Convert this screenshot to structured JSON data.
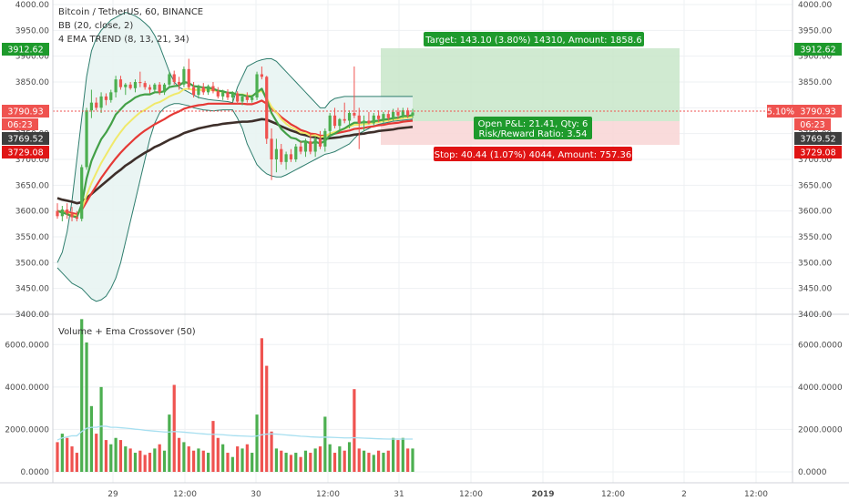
{
  "legend": {
    "symbol": "Bitcoin / TetherUS, 60, BINANCE",
    "bb": "BB (20, close, 2)",
    "ema": "4 EMA TREND (8, 13, 21, 34)",
    "volume": "Volume + Ema Crossover (50)"
  },
  "colors": {
    "up": "#4caf50",
    "down": "#ef5350",
    "bb_line": "#2e7d6d",
    "bb_fill": "#e8f4f2",
    "ema8": "#43a047",
    "ema13": "#f0e96a",
    "ema21": "#e53935",
    "ema34": "#3e2f2a",
    "target_zone": "#c8e6c9",
    "stop_zone": "#f8d7d7",
    "ema_vol": "#a7dff0"
  },
  "price_axis": {
    "ticks": [
      "4000.00",
      "3950.00",
      "3900.00",
      "3850.00",
      "3800.00",
      "3750.00",
      "3700.00",
      "3650.00",
      "3600.00",
      "3550.00",
      "3500.00",
      "3450.00",
      "3400.00"
    ]
  },
  "price_tags": {
    "target": "3912.62",
    "last": "3790.93",
    "countdown": "06:23",
    "entry": "3769.52",
    "stop": "3729.08",
    "pct": "5.10%"
  },
  "volume_axis": {
    "ticks": [
      "6000.0000",
      "4000.0000",
      "2000.0000",
      "0.0000"
    ]
  },
  "time_axis": {
    "ticks": [
      "29",
      "12:00",
      "30",
      "12:00",
      "31",
      "12:00",
      "2019",
      "12:00",
      "2",
      "12:00"
    ]
  },
  "position": {
    "target_label": "Target: 143.10 (3.80%) 14310, Amount: 1858.6",
    "pnl_line1": "Open P&L: 21.41, Qty: 6",
    "pnl_line2": "Risk/Reward Ratio: 3.54",
    "stop_label": "Stop: 40.44 (1.07%) 4044, Amount: 757.36"
  },
  "chart_data": {
    "type": "candlestick",
    "title": "Bitcoin / TetherUS, 60, BINANCE",
    "ylim": [
      3400,
      4000
    ],
    "volume_ylim": [
      0,
      7000
    ],
    "candles": [
      {
        "o": 3600,
        "h": 3615,
        "l": 3585,
        "c": 3590
      },
      {
        "o": 3590,
        "h": 3610,
        "l": 3580,
        "c": 3603
      },
      {
        "o": 3603,
        "h": 3615,
        "l": 3585,
        "c": 3595
      },
      {
        "o": 3595,
        "h": 3608,
        "l": 3580,
        "c": 3588
      },
      {
        "o": 3588,
        "h": 3600,
        "l": 3580,
        "c": 3585
      },
      {
        "o": 3585,
        "h": 3690,
        "l": 3580,
        "c": 3685
      },
      {
        "o": 3685,
        "h": 3800,
        "l": 3680,
        "c": 3795
      },
      {
        "o": 3795,
        "h": 3835,
        "l": 3780,
        "c": 3810
      },
      {
        "o": 3810,
        "h": 3820,
        "l": 3795,
        "c": 3800
      },
      {
        "o": 3800,
        "h": 3830,
        "l": 3790,
        "c": 3822
      },
      {
        "o": 3822,
        "h": 3828,
        "l": 3805,
        "c": 3815
      },
      {
        "o": 3815,
        "h": 3835,
        "l": 3810,
        "c": 3830
      },
      {
        "o": 3830,
        "h": 3862,
        "l": 3820,
        "c": 3855
      },
      {
        "o": 3855,
        "h": 3862,
        "l": 3835,
        "c": 3840
      },
      {
        "o": 3840,
        "h": 3848,
        "l": 3825,
        "c": 3845
      },
      {
        "o": 3845,
        "h": 3850,
        "l": 3835,
        "c": 3838
      },
      {
        "o": 3838,
        "h": 3855,
        "l": 3830,
        "c": 3850
      },
      {
        "o": 3850,
        "h": 3870,
        "l": 3840,
        "c": 3848
      },
      {
        "o": 3848,
        "h": 3852,
        "l": 3835,
        "c": 3840
      },
      {
        "o": 3840,
        "h": 3845,
        "l": 3828,
        "c": 3835
      },
      {
        "o": 3835,
        "h": 3848,
        "l": 3830,
        "c": 3845
      },
      {
        "o": 3845,
        "h": 3850,
        "l": 3825,
        "c": 3830
      },
      {
        "o": 3830,
        "h": 3848,
        "l": 3825,
        "c": 3845
      },
      {
        "o": 3845,
        "h": 3870,
        "l": 3840,
        "c": 3865
      },
      {
        "o": 3865,
        "h": 3872,
        "l": 3845,
        "c": 3850
      },
      {
        "o": 3850,
        "h": 3860,
        "l": 3835,
        "c": 3845
      },
      {
        "o": 3845,
        "h": 3880,
        "l": 3840,
        "c": 3875
      },
      {
        "o": 3875,
        "h": 3895,
        "l": 3835,
        "c": 3840
      },
      {
        "o": 3840,
        "h": 3850,
        "l": 3820,
        "c": 3825
      },
      {
        "o": 3825,
        "h": 3845,
        "l": 3818,
        "c": 3840
      },
      {
        "o": 3840,
        "h": 3848,
        "l": 3825,
        "c": 3830
      },
      {
        "o": 3830,
        "h": 3845,
        "l": 3825,
        "c": 3842
      },
      {
        "o": 3842,
        "h": 3850,
        "l": 3828,
        "c": 3832
      },
      {
        "o": 3832,
        "h": 3840,
        "l": 3818,
        "c": 3822
      },
      {
        "o": 3822,
        "h": 3835,
        "l": 3815,
        "c": 3830
      },
      {
        "o": 3830,
        "h": 3836,
        "l": 3815,
        "c": 3820
      },
      {
        "o": 3820,
        "h": 3832,
        "l": 3812,
        "c": 3828
      },
      {
        "o": 3828,
        "h": 3832,
        "l": 3808,
        "c": 3812
      },
      {
        "o": 3812,
        "h": 3825,
        "l": 3805,
        "c": 3822
      },
      {
        "o": 3822,
        "h": 3830,
        "l": 3810,
        "c": 3815
      },
      {
        "o": 3815,
        "h": 3825,
        "l": 3810,
        "c": 3820
      },
      {
        "o": 3820,
        "h": 3870,
        "l": 3815,
        "c": 3865
      },
      {
        "o": 3865,
        "h": 3880,
        "l": 3855,
        "c": 3860
      },
      {
        "o": 3860,
        "h": 3862,
        "l": 3730,
        "c": 3740
      },
      {
        "o": 3740,
        "h": 3760,
        "l": 3660,
        "c": 3700
      },
      {
        "o": 3700,
        "h": 3740,
        "l": 3675,
        "c": 3720
      },
      {
        "o": 3720,
        "h": 3730,
        "l": 3690,
        "c": 3695
      },
      {
        "o": 3695,
        "h": 3715,
        "l": 3680,
        "c": 3710
      },
      {
        "o": 3710,
        "h": 3720,
        "l": 3695,
        "c": 3700
      },
      {
        "o": 3700,
        "h": 3730,
        "l": 3695,
        "c": 3725
      },
      {
        "o": 3725,
        "h": 3735,
        "l": 3710,
        "c": 3715
      },
      {
        "o": 3715,
        "h": 3740,
        "l": 3705,
        "c": 3735
      },
      {
        "o": 3735,
        "h": 3750,
        "l": 3710,
        "c": 3715
      },
      {
        "o": 3715,
        "h": 3745,
        "l": 3705,
        "c": 3740
      },
      {
        "o": 3740,
        "h": 3755,
        "l": 3720,
        "c": 3725
      },
      {
        "o": 3725,
        "h": 3760,
        "l": 3715,
        "c": 3755
      },
      {
        "o": 3755,
        "h": 3790,
        "l": 3745,
        "c": 3785
      },
      {
        "o": 3785,
        "h": 3800,
        "l": 3760,
        "c": 3765
      },
      {
        "o": 3765,
        "h": 3780,
        "l": 3755,
        "c": 3778
      },
      {
        "o": 3778,
        "h": 3810,
        "l": 3770,
        "c": 3775
      },
      {
        "o": 3775,
        "h": 3795,
        "l": 3760,
        "c": 3790
      },
      {
        "o": 3790,
        "h": 3880,
        "l": 3780,
        "c": 3785
      },
      {
        "o": 3785,
        "h": 3800,
        "l": 3720,
        "c": 3770
      },
      {
        "o": 3770,
        "h": 3785,
        "l": 3755,
        "c": 3775
      },
      {
        "o": 3775,
        "h": 3792,
        "l": 3768,
        "c": 3770
      },
      {
        "o": 3770,
        "h": 3790,
        "l": 3765,
        "c": 3785
      },
      {
        "o": 3785,
        "h": 3795,
        "l": 3772,
        "c": 3778
      },
      {
        "o": 3778,
        "h": 3792,
        "l": 3770,
        "c": 3788
      },
      {
        "o": 3788,
        "h": 3795,
        "l": 3775,
        "c": 3780
      },
      {
        "o": 3780,
        "h": 3798,
        "l": 3775,
        "c": 3792
      },
      {
        "o": 3792,
        "h": 3800,
        "l": 3778,
        "c": 3785
      },
      {
        "o": 3785,
        "h": 3800,
        "l": 3780,
        "c": 3795
      },
      {
        "o": 3795,
        "h": 3800,
        "l": 3780,
        "c": 3785
      },
      {
        "o": 3785,
        "h": 3798,
        "l": 3780,
        "c": 3791
      }
    ],
    "volume": [
      1400,
      1800,
      1600,
      1200,
      900,
      7200,
      6100,
      3100,
      1800,
      4000,
      1500,
      1300,
      1600,
      1500,
      1200,
      1100,
      900,
      1000,
      800,
      900,
      1100,
      1300,
      1000,
      2700,
      4100,
      1600,
      1400,
      1200,
      1000,
      1100,
      1000,
      900,
      2400,
      1600,
      1300,
      900,
      700,
      1200,
      1100,
      1300,
      900,
      2700,
      6300,
      5000,
      1900,
      1100,
      1000,
      900,
      800,
      900,
      700,
      1000,
      900,
      1100,
      1200,
      2600,
      1300,
      900,
      1200,
      1000,
      1400,
      3900,
      1100,
      1000,
      900,
      800,
      1000,
      900,
      1000,
      1600,
      1500,
      1600,
      1100,
      1100
    ],
    "bb_upper": [
      3500,
      3520,
      3560,
      3620,
      3700,
      3780,
      3860,
      3910,
      3935,
      3950,
      3960,
      3970,
      3975,
      3980,
      3985,
      3982,
      3978,
      3972,
      3964,
      3955,
      3940,
      3920,
      3895,
      3870,
      3850,
      3840,
      3835,
      3830,
      3825,
      3820,
      3818,
      3816,
      3815,
      3814,
      3813,
      3812,
      3810,
      3840,
      3860,
      3880,
      3885,
      3890,
      3893,
      3895,
      3895,
      3890,
      3880,
      3870,
      3860,
      3850,
      3840,
      3830,
      3820,
      3810,
      3800,
      3800,
      3812,
      3818,
      3820,
      3822,
      3822,
      3822,
      3822,
      3822,
      3822,
      3822,
      3822,
      3822,
      3822,
      3822,
      3822,
      3822,
      3822,
      3822
    ],
    "bb_lower": [
      3490,
      3480,
      3470,
      3460,
      3455,
      3450,
      3440,
      3430,
      3425,
      3428,
      3435,
      3450,
      3470,
      3500,
      3540,
      3580,
      3620,
      3660,
      3700,
      3740,
      3770,
      3790,
      3800,
      3805,
      3808,
      3808,
      3806,
      3804,
      3800,
      3798,
      3796,
      3795,
      3794,
      3795,
      3796,
      3796,
      3796,
      3780,
      3760,
      3730,
      3710,
      3690,
      3680,
      3672,
      3668,
      3666,
      3666,
      3670,
      3675,
      3680,
      3685,
      3690,
      3695,
      3700,
      3705,
      3710,
      3712,
      3715,
      3720,
      3725,
      3730,
      3740,
      3750,
      3755,
      3760,
      3765,
      3768,
      3770,
      3772,
      3774,
      3775,
      3776,
      3777,
      3778
    ],
    "ema8": [
      3600,
      3597,
      3594,
      3590,
      3588,
      3613,
      3663,
      3697,
      3719,
      3739,
      3752,
      3768,
      3787,
      3797,
      3807,
      3813,
      3820,
      3824,
      3826,
      3826,
      3830,
      3830,
      3832,
      3840,
      3842,
      3843,
      3850,
      3848,
      3842,
      3841,
      3839,
      3839,
      3837,
      3833,
      3832,
      3829,
      3829,
      3825,
      3825,
      3822,
      3822,
      3830,
      3837,
      3816,
      3790,
      3774,
      3759,
      3750,
      3742,
      3740,
      3734,
      3735,
      3731,
      3734,
      3731,
      3736,
      3746,
      3750,
      3756,
      3760,
      3766,
      3771,
      3771,
      3772,
      3772,
      3774,
      3775,
      3777,
      3778,
      3780,
      3781,
      3784,
      3784,
      3786
    ],
    "ema13": [
      3600,
      3598,
      3596,
      3593,
      3591,
      3604,
      3630,
      3654,
      3674,
      3693,
      3709,
      3725,
      3740,
      3753,
      3765,
      3774,
      3783,
      3791,
      3796,
      3802,
      3808,
      3811,
      3816,
      3822,
      3826,
      3829,
      3836,
      3837,
      3834,
      3835,
      3834,
      3835,
      3834,
      3832,
      3831,
      3829,
      3829,
      3826,
      3826,
      3824,
      3823,
      3829,
      3833,
      3819,
      3802,
      3791,
      3778,
      3769,
      3762,
      3758,
      3752,
      3751,
      3746,
      3747,
      3743,
      3745,
      3750,
      3753,
      3756,
      3759,
      3763,
      3767,
      3767,
      3768,
      3769,
      3771,
      3772,
      3774,
      3775,
      3777,
      3778,
      3780,
      3781,
      3782
    ],
    "ema21": [
      3600,
      3599,
      3598,
      3596,
      3594,
      3602,
      3618,
      3634,
      3649,
      3664,
      3677,
      3690,
      3702,
      3713,
      3723,
      3732,
      3741,
      3749,
      3756,
      3762,
      3768,
      3773,
      3778,
      3784,
      3789,
      3793,
      3798,
      3801,
      3803,
      3805,
      3806,
      3808,
      3808,
      3808,
      3808,
      3808,
      3808,
      3808,
      3808,
      3807,
      3807,
      3810,
      3814,
      3808,
      3799,
      3791,
      3782,
      3775,
      3768,
      3763,
      3757,
      3754,
      3750,
      3749,
      3746,
      3746,
      3748,
      3750,
      3752,
      3754,
      3756,
      3759,
      3760,
      3761,
      3763,
      3764,
      3766,
      3767,
      3769,
      3770,
      3771,
      3773,
      3774,
      3775
    ],
    "ema34": [
      3625,
      3622,
      3620,
      3618,
      3615,
      3617,
      3625,
      3633,
      3641,
      3649,
      3657,
      3665,
      3673,
      3680,
      3688,
      3694,
      3701,
      3707,
      3713,
      3718,
      3724,
      3728,
      3733,
      3738,
      3742,
      3746,
      3751,
      3754,
      3757,
      3760,
      3762,
      3764,
      3766,
      3767,
      3769,
      3770,
      3771,
      3772,
      3773,
      3773,
      3774,
      3776,
      3778,
      3777,
      3773,
      3769,
      3764,
      3760,
      3756,
      3753,
      3749,
      3747,
      3744,
      3743,
      3741,
      3740,
      3741,
      3742,
      3743,
      3745,
      3746,
      3748,
      3749,
      3750,
      3752,
      3753,
      3755,
      3756,
      3757,
      3758,
      3760,
      3761,
      3762,
      3763
    ],
    "ema_volume": [
      1500,
      1600,
      1650,
      1700,
      1700,
      1900,
      2050,
      2100,
      2100,
      2150,
      2150,
      2100,
      2100,
      2080,
      2060,
      2040,
      2010,
      1990,
      1960,
      1940,
      1920,
      1900,
      1880,
      1880,
      1900,
      1890,
      1870,
      1850,
      1830,
      1810,
      1790,
      1770,
      1770,
      1760,
      1750,
      1730,
      1710,
      1700,
      1690,
      1680,
      1670,
      1690,
      1750,
      1780,
      1790,
      1780,
      1760,
      1740,
      1720,
      1700,
      1680,
      1670,
      1650,
      1640,
      1630,
      1640,
      1630,
      1620,
      1610,
      1600,
      1600,
      1610,
      1600,
      1590,
      1580,
      1570,
      1560,
      1550,
      1545,
      1545,
      1545,
      1545,
      1545,
      1545
    ]
  }
}
